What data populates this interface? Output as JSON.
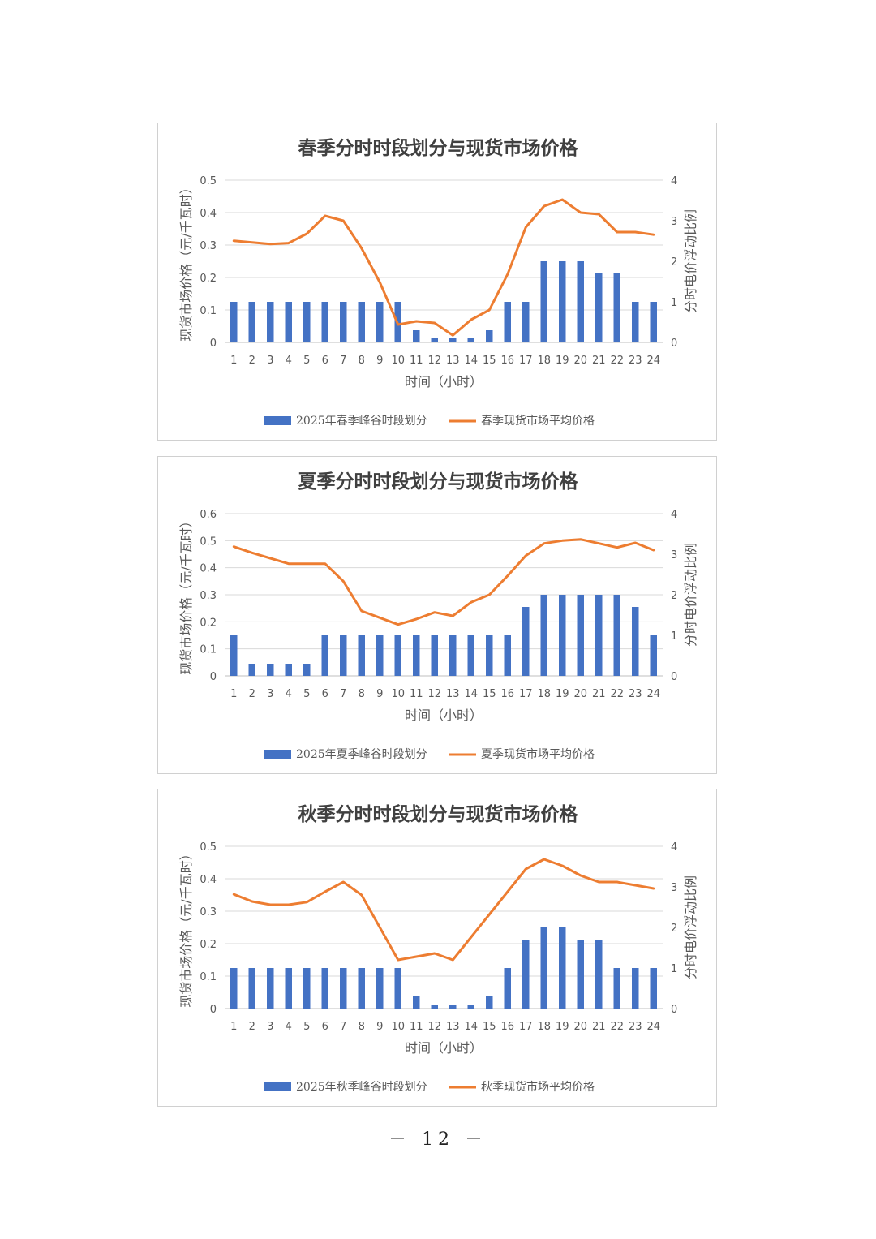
{
  "chart_data": [
    {
      "type": "bar+line",
      "title": "春季分时时段划分与现货市场价格",
      "xlabel": "时间（小时）",
      "ylabel_left": "现货市场价格（元/千瓦时）",
      "ylabel_right": "分时电价浮动比例",
      "x": [
        "1",
        "2",
        "3",
        "4",
        "5",
        "6",
        "7",
        "8",
        "9",
        "10",
        "11",
        "12",
        "13",
        "14",
        "15",
        "16",
        "17",
        "18",
        "19",
        "20",
        "21",
        "22",
        "23",
        "24"
      ],
      "ylim_left": [
        0,
        0.5
      ],
      "yticks_left": [
        "0",
        "0.1",
        "0.2",
        "0.3",
        "0.4",
        "0.5"
      ],
      "ylim_right": [
        0,
        4
      ],
      "yticks_right": [
        "0",
        "1",
        "2",
        "3",
        "4"
      ],
      "grid": true,
      "legend": "bottom",
      "series": [
        {
          "name": "2025年春季峰谷时段划分",
          "type": "bar",
          "axis": "right",
          "color": "#4472C4",
          "values": [
            1,
            1,
            1,
            1,
            1,
            1,
            1,
            1,
            1,
            1,
            0.3,
            0.1,
            0.1,
            0.1,
            0.3,
            1,
            1,
            2,
            2,
            2,
            1.7,
            1.7,
            1,
            1
          ]
        },
        {
          "name": "春季现货市场平均价格",
          "type": "line",
          "axis": "left",
          "color": "#ED7D31",
          "values": [
            0.313,
            0.308,
            0.303,
            0.306,
            0.335,
            0.39,
            0.375,
            0.29,
            0.185,
            0.055,
            0.065,
            0.06,
            0.022,
            0.07,
            0.1,
            0.21,
            0.355,
            0.42,
            0.44,
            0.4,
            0.395,
            0.34,
            0.34,
            0.332
          ]
        }
      ]
    },
    {
      "type": "bar+line",
      "title": "夏季分时时段划分与现货市场价格",
      "xlabel": "时间（小时）",
      "ylabel_left": "现货市场价格（元/千瓦时）",
      "ylabel_right": "分时电价浮动比例",
      "x": [
        "1",
        "2",
        "3",
        "4",
        "5",
        "6",
        "7",
        "8",
        "9",
        "10",
        "11",
        "12",
        "13",
        "14",
        "15",
        "16",
        "17",
        "18",
        "19",
        "20",
        "21",
        "22",
        "23",
        "24"
      ],
      "ylim_left": [
        0,
        0.6
      ],
      "yticks_left": [
        "0",
        "0.1",
        "0.2",
        "0.3",
        "0.4",
        "0.5",
        "0.6"
      ],
      "ylim_right": [
        0,
        4
      ],
      "yticks_right": [
        "0",
        "1",
        "2",
        "3",
        "4"
      ],
      "grid": true,
      "legend": "bottom",
      "series": [
        {
          "name": "2025年夏季峰谷时段划分",
          "type": "bar",
          "axis": "right",
          "color": "#4472C4",
          "values": [
            1,
            0.3,
            0.3,
            0.3,
            0.3,
            1,
            1,
            1,
            1,
            1,
            1,
            1,
            1,
            1,
            1,
            1,
            1.7,
            2,
            2,
            2,
            2,
            2,
            1.7,
            1
          ]
        },
        {
          "name": "夏季现货市场平均价格",
          "type": "line",
          "axis": "left",
          "color": "#ED7D31",
          "values": [
            0.478,
            0.455,
            0.435,
            0.415,
            0.415,
            0.415,
            0.35,
            0.24,
            0.215,
            0.19,
            0.21,
            0.235,
            0.222,
            0.272,
            0.3,
            0.37,
            0.445,
            0.49,
            0.5,
            0.505,
            0.49,
            0.475,
            0.492,
            0.465
          ]
        }
      ]
    },
    {
      "type": "bar+line",
      "title": "秋季分时时段划分与现货市场价格",
      "xlabel": "时间（小时）",
      "ylabel_left": "现货市场价格（元/千瓦时）",
      "ylabel_right": "分时电价浮动比例",
      "x": [
        "1",
        "2",
        "3",
        "4",
        "5",
        "6",
        "7",
        "8",
        "9",
        "10",
        "11",
        "12",
        "13",
        "14",
        "15",
        "16",
        "17",
        "18",
        "19",
        "20",
        "21",
        "22",
        "23",
        "24"
      ],
      "ylim_left": [
        0,
        0.5
      ],
      "yticks_left": [
        "0",
        "0.1",
        "0.2",
        "0.3",
        "0.4",
        "0.5"
      ],
      "ylim_right": [
        0,
        4
      ],
      "yticks_right": [
        "0",
        "1",
        "2",
        "3",
        "4"
      ],
      "grid": true,
      "legend": "bottom",
      "series": [
        {
          "name": "2025年秋季峰谷时段划分",
          "type": "bar",
          "axis": "right",
          "color": "#4472C4",
          "values": [
            1,
            1,
            1,
            1,
            1,
            1,
            1,
            1,
            1,
            1,
            0.3,
            0.1,
            0.1,
            0.1,
            0.3,
            1,
            1.7,
            2,
            2,
            1.7,
            1.7,
            1,
            1,
            1
          ]
        },
        {
          "name": "秋季现货市场平均价格",
          "type": "line",
          "axis": "left",
          "color": "#ED7D31",
          "values": [
            0.352,
            0.33,
            0.32,
            0.32,
            0.328,
            0.36,
            0.39,
            0.35,
            0.25,
            0.15,
            0.16,
            0.17,
            0.15,
            0.22,
            0.29,
            0.36,
            0.43,
            0.46,
            0.44,
            0.41,
            0.39,
            0.39,
            0.38,
            0.37
          ]
        }
      ]
    }
  ],
  "page_number": "－ 12 －"
}
